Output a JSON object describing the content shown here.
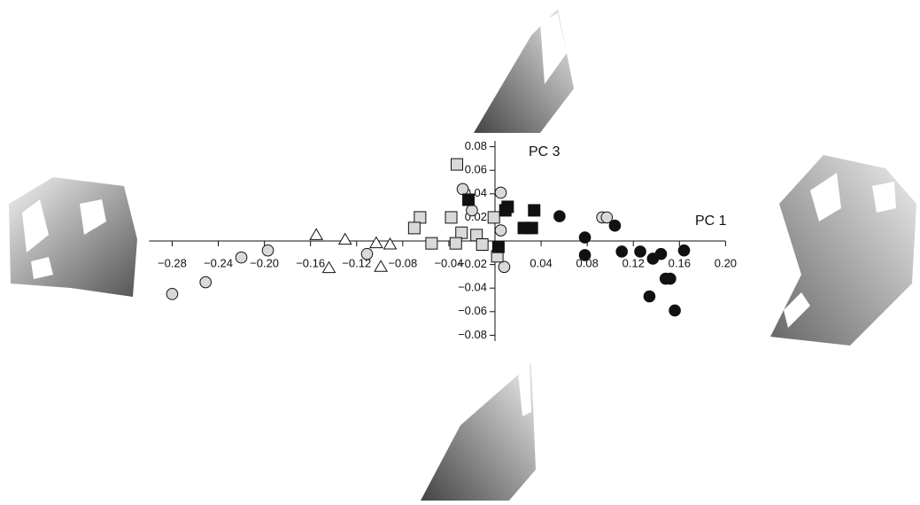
{
  "chart_data": {
    "type": "scatter",
    "xlabel": "PC 1",
    "ylabel": "PC 3",
    "xlim": [
      -0.3,
      0.2
    ],
    "ylim": [
      -0.085,
      0.085
    ],
    "xticks": [
      {
        "value": -0.28,
        "label": "−0.28"
      },
      {
        "value": -0.24,
        "label": "−0.24"
      },
      {
        "value": -0.2,
        "label": "−0.20"
      },
      {
        "value": -0.16,
        "label": "−0.16"
      },
      {
        "value": -0.12,
        "label": "−0.12"
      },
      {
        "value": -0.08,
        "label": "−0.08"
      },
      {
        "value": -0.04,
        "label": "−0.04"
      },
      {
        "value": 0.04,
        "label": "0.04"
      },
      {
        "value": 0.08,
        "label": "0.08"
      },
      {
        "value": 0.12,
        "label": "0.12"
      },
      {
        "value": 0.16,
        "label": "0.16"
      },
      {
        "value": 0.2,
        "label": "0.20"
      }
    ],
    "yticks": [
      {
        "value": 0.08,
        "label": "0.08"
      },
      {
        "value": 0.06,
        "label": "0.06"
      },
      {
        "value": 0.04,
        "label": "0.04"
      },
      {
        "value": 0.02,
        "label": "0.02"
      },
      {
        "value": -0.02,
        "label": "−0.02"
      },
      {
        "value": -0.04,
        "label": "−0.04"
      },
      {
        "value": -0.06,
        "label": "−0.06"
      },
      {
        "value": -0.08,
        "label": "−0.08"
      }
    ],
    "series": [
      {
        "marker": "circle",
        "color": "#d9d9d9",
        "x": [
          -0.28,
          -0.251,
          -0.22,
          -0.197,
          -0.111,
          -0.028,
          -0.02,
          0.005,
          0.005,
          0.008,
          0.093,
          0.097
        ],
        "values": [
          -0.045,
          -0.035,
          -0.014,
          -0.008,
          -0.011,
          0.044,
          0.026,
          0.041,
          0.009,
          -0.022,
          0.02,
          0.02
        ]
      },
      {
        "marker": "circle",
        "color": "#111111",
        "x": [
          0.056,
          0.078,
          0.078,
          0.104,
          0.11,
          0.126,
          0.137,
          0.144,
          0.148,
          0.152,
          0.164,
          0.134,
          0.156
        ],
        "values": [
          0.021,
          0.003,
          -0.012,
          0.013,
          -0.009,
          -0.009,
          -0.015,
          -0.011,
          -0.032,
          -0.032,
          -0.008,
          -0.047,
          -0.059
        ]
      },
      {
        "marker": "triangle",
        "color": "#ffffff",
        "x": [
          -0.155,
          -0.13,
          -0.144,
          -0.103,
          -0.091,
          -0.099
        ],
        "values": [
          0.005,
          0.001,
          -0.023,
          -0.002,
          -0.003,
          -0.022
        ]
      },
      {
        "marker": "square",
        "color": "#d9d9d9",
        "x": [
          -0.033,
          -0.065,
          -0.07,
          -0.055,
          -0.038,
          -0.029,
          -0.034,
          -0.016,
          -0.011,
          0.002,
          -0.001
        ],
        "values": [
          0.065,
          0.02,
          0.011,
          -0.002,
          0.02,
          0.007,
          -0.002,
          0.005,
          -0.003,
          -0.013,
          0.02
        ]
      },
      {
        "marker": "square",
        "color": "#111111",
        "x": [
          -0.023,
          0.011,
          0.034,
          0.025,
          0.032,
          0.003,
          0.009
        ],
        "values": [
          0.035,
          0.029,
          0.026,
          0.011,
          0.011,
          -0.005,
          0.026
        ]
      }
    ]
  }
}
